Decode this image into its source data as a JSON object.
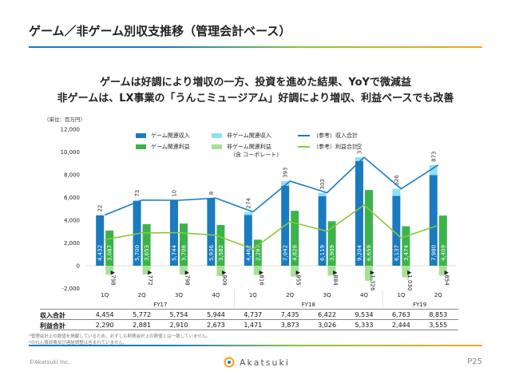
{
  "page": {
    "title": "ゲーム／非ゲーム別収支推移（管理会計ベース）",
    "headline1": "ゲームは好調により増収の一方、投資を進めた結果、YoYで微減益",
    "headline2": "非ゲームは、LX事業の「うんこミュージアム」好調により増収、利益ベースでも改善",
    "unit": "（単位：百万円）",
    "note1": "*管理会計上の数値を掲載しているため、必ずしも財務会計上の数値とは一致していません。",
    "note2": "*のれん償却費及び連結調整は含まれていません。",
    "copyright": "©Akatsuki Inc.",
    "logo_text": "Akatsuki",
    "page_number": "P25",
    "colors": {
      "game_revenue": "#1a7bbf",
      "nongame_revenue": "#8fdff5",
      "game_profit": "#3cb34a",
      "nongame_profit": "#a8e09a",
      "total_revenue_line": "#1a7bbf",
      "total_profit_line": "#8cc63f",
      "accent_green": "#8cc63f",
      "accent_blue": "#1a7bbf",
      "accent_orange": "#f5a623"
    }
  },
  "table": {
    "revenue_label": "収入合計",
    "profit_label": "利益合計",
    "revenue_values": [
      "4,454",
      "5,772",
      "5,754",
      "5,944",
      "4,737",
      "7,435",
      "6,422",
      "9,534",
      "6,763",
      "8,853"
    ],
    "profit_values": [
      "2,290",
      "2,881",
      "2,910",
      "2,673",
      "1,471",
      "3,873",
      "3,026",
      "5,333",
      "2,444",
      "3,555"
    ]
  },
  "chart_data": {
    "type": "bar",
    "categories": [
      "1Q",
      "2Q",
      "3Q",
      "4Q",
      "1Q",
      "2Q",
      "3Q",
      "4Q",
      "1Q",
      "2Q"
    ],
    "fiscal_years": [
      {
        "label": "FY17",
        "start": 0,
        "end": 3
      },
      {
        "label": "FY18",
        "start": 4,
        "end": 7
      },
      {
        "label": "FY19",
        "start": 8,
        "end": 9
      }
    ],
    "ylim": [
      -2000,
      12000
    ],
    "yticks": [
      -2000,
      0,
      2000,
      4000,
      6000,
      8000,
      10000,
      12000
    ],
    "ytick_labels": [
      "-2,000",
      "0",
      "2,000",
      "4,000",
      "6,000",
      "8,000",
      "10,000",
      "12,000"
    ],
    "legend": [
      {
        "key": "game_revenue",
        "label": "ゲーム関連収入",
        "kind": "bar"
      },
      {
        "key": "nongame_revenue",
        "label": "非ゲーム関連収入",
        "kind": "bar"
      },
      {
        "key": "total_revenue_line",
        "label": "（参考）収入合計",
        "kind": "line"
      },
      {
        "key": "game_profit",
        "label": "ゲーム関連利益",
        "kind": "bar"
      },
      {
        "key": "nongame_profit",
        "label": "非ゲーム関連利益",
        "sublabel": "（含 コーポレート）",
        "kind": "bar"
      },
      {
        "key": "total_profit_line",
        "label": "（参考）利益合計",
        "kind": "line"
      }
    ],
    "series": [
      {
        "name": "ゲーム関連収入",
        "values": [
          4432,
          5700,
          5744,
          5936,
          4462,
          7042,
          6119,
          9204,
          6137,
          7980
        ],
        "labels": [
          "4,432",
          "5,700",
          "5,744",
          "5,936",
          "4,462",
          "7,042",
          "6,119",
          "9,204",
          "6,137",
          "7,980"
        ]
      },
      {
        "name": "非ゲーム関連収入",
        "values": [
          22,
          73,
          10,
          8,
          274,
          393,
          303,
          330,
          626,
          873
        ],
        "labels": [
          "22",
          "73",
          "10",
          "8",
          "274",
          "393",
          "303",
          "330",
          "626",
          "873"
        ]
      },
      {
        "name": "ゲーム関連利益",
        "values": [
          3087,
          3653,
          3708,
          3582,
          2287,
          4828,
          3909,
          6659,
          3474,
          4409
        ],
        "labels": [
          "3,087",
          "3,653",
          "3,708",
          "3,582",
          "2,287",
          "4,828",
          "3,909",
          "6,659",
          "3,474",
          "4,409"
        ]
      },
      {
        "name": "非ゲーム関連利益",
        "values": [
          -798,
          -772,
          -798,
          -909,
          -816,
          -955,
          -884,
          -1326,
          -1030,
          -854
        ],
        "labels": [
          "▲798",
          "▲772",
          "▲798",
          "▲909",
          "▲816",
          "▲955",
          "▲884",
          "▲1,326",
          "▲1,030",
          "▲854"
        ]
      },
      {
        "name": "（参考）収入合計",
        "values": [
          4454,
          5772,
          5754,
          5944,
          4737,
          7435,
          6422,
          9534,
          6763,
          8853
        ]
      },
      {
        "name": "（参考）利益合計",
        "values": [
          2290,
          2881,
          2910,
          2673,
          1471,
          3873,
          3026,
          5333,
          2444,
          3555
        ]
      }
    ]
  }
}
